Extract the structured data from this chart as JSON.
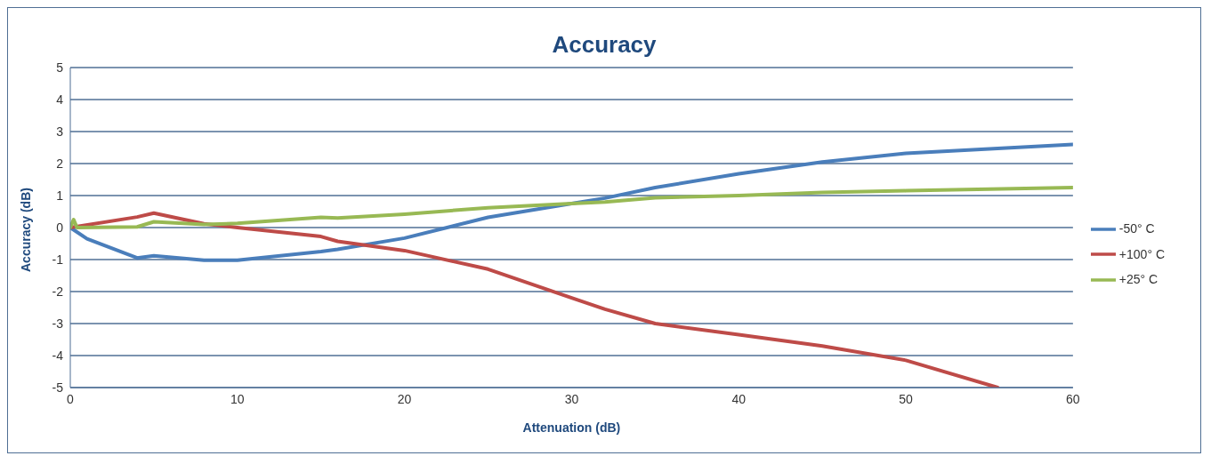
{
  "chart_data": {
    "type": "line",
    "title": "Accuracy",
    "xlabel": "Attenuation (dB)",
    "ylabel": "Accuracy (dB)",
    "xlim": [
      0,
      60
    ],
    "xticks": [
      0,
      10,
      20,
      30,
      40,
      50,
      60
    ],
    "ylim": [
      -5,
      5
    ],
    "yticks": [
      -5,
      -4,
      -3,
      -2,
      -1,
      0,
      1,
      2,
      3,
      4,
      5
    ],
    "grid": "y",
    "legend": "right",
    "marker": "none",
    "line_style": "solid",
    "series": [
      {
        "name": "-50° C",
        "color": "#4a7ebb",
        "x": [
          0,
          1,
          4,
          5,
          8,
          10,
          15,
          16,
          20,
          25,
          30,
          32,
          35,
          40,
          45,
          50,
          60
        ],
        "values": [
          0,
          -0.35,
          -0.95,
          -0.88,
          -1.02,
          -1.02,
          -0.75,
          -0.68,
          -0.33,
          0.32,
          0.75,
          0.92,
          1.25,
          1.68,
          2.05,
          2.32,
          2.6
        ]
      },
      {
        "name": "+100° C",
        "color": "#be4b48",
        "x": [
          0,
          4,
          5,
          8,
          10,
          15,
          16,
          20,
          25,
          30,
          32,
          35,
          40,
          45,
          50,
          55.5
        ],
        "values": [
          0,
          0.33,
          0.45,
          0.12,
          0,
          -0.28,
          -0.43,
          -0.72,
          -1.3,
          -2.2,
          -2.55,
          -3.0,
          -3.35,
          -3.7,
          -4.15,
          -5
        ]
      },
      {
        "name": "+25° C",
        "color": "#98b954",
        "x": [
          0,
          0.2,
          0.4,
          4,
          5,
          8,
          10,
          15,
          16,
          20,
          25,
          30,
          32,
          35,
          40,
          45,
          50,
          60
        ],
        "values": [
          0,
          0.25,
          0,
          0.02,
          0.18,
          0.1,
          0.13,
          0.32,
          0.3,
          0.42,
          0.62,
          0.75,
          0.8,
          0.93,
          1.0,
          1.1,
          1.15,
          1.25
        ]
      }
    ]
  }
}
